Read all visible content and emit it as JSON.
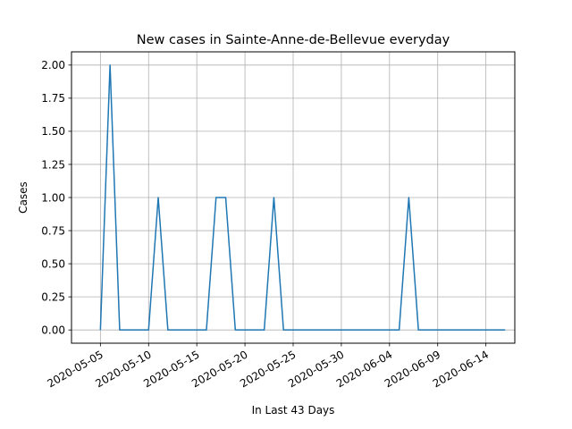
{
  "chart_data": {
    "type": "line",
    "title": "New cases in Sainte-Anne-de-Bellevue everyday",
    "xlabel": "In Last 43 Days",
    "ylabel": "Cases",
    "x_tick_labels": [
      "2020-05-05",
      "2020-05-10",
      "2020-05-15",
      "2020-05-20",
      "2020-05-25",
      "2020-05-30",
      "2020-06-04",
      "2020-06-09",
      "2020-06-14"
    ],
    "y_tick_labels": [
      "0.00",
      "0.25",
      "0.50",
      "0.75",
      "1.00",
      "1.25",
      "1.50",
      "1.75",
      "2.00"
    ],
    "ylim": [
      -0.1,
      2.1
    ],
    "xlim": [
      "2020-05-02",
      "2020-06-17"
    ],
    "grid": true,
    "line_color": "#1f77b4",
    "series": [
      {
        "x": [
          "2020-05-05",
          "2020-05-06",
          "2020-05-07",
          "2020-05-08",
          "2020-05-09",
          "2020-05-10",
          "2020-05-11",
          "2020-05-12",
          "2020-05-13",
          "2020-05-14",
          "2020-05-15",
          "2020-05-16",
          "2020-05-17",
          "2020-05-18",
          "2020-05-19",
          "2020-05-20",
          "2020-05-21",
          "2020-05-22",
          "2020-05-23",
          "2020-05-24",
          "2020-05-25",
          "2020-05-26",
          "2020-05-27",
          "2020-05-28",
          "2020-05-29",
          "2020-05-30",
          "2020-05-31",
          "2020-06-01",
          "2020-06-02",
          "2020-06-03",
          "2020-06-04",
          "2020-06-05",
          "2020-06-06",
          "2020-06-07",
          "2020-06-08",
          "2020-06-09",
          "2020-06-10",
          "2020-06-11",
          "2020-06-12",
          "2020-06-13",
          "2020-06-14",
          "2020-06-15",
          "2020-06-16"
        ],
        "values": [
          0,
          2,
          0,
          0,
          0,
          0,
          1,
          0,
          0,
          0,
          0,
          0,
          1,
          1,
          0,
          0,
          0,
          0,
          1,
          0,
          0,
          0,
          0,
          0,
          0,
          0,
          0,
          0,
          0,
          0,
          0,
          0,
          1,
          0,
          0,
          0,
          0,
          0,
          0,
          0,
          0,
          0,
          0
        ]
      }
    ]
  }
}
